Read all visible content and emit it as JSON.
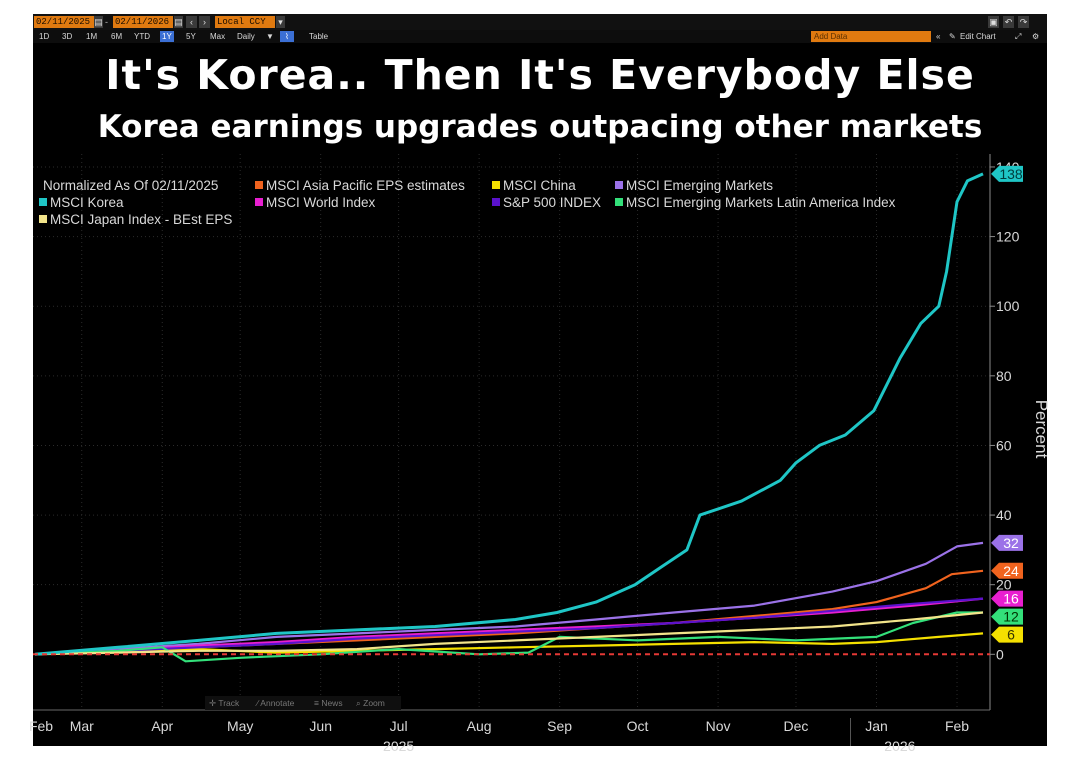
{
  "toolbar": {
    "start_date": "02/11/2025",
    "end_date": "02/11/2026",
    "currency": "Local CCY",
    "ranges": [
      "1D",
      "3D",
      "1M",
      "6M",
      "YTD",
      "1Y",
      "5Y",
      "Max"
    ],
    "active_range": "1Y",
    "frequency": "Daily",
    "table_label": "Table",
    "add_data_placeholder": "Add Data",
    "edit_chart_label": "Edit Chart"
  },
  "headline": "It's Korea.. Then It's Everybody Else",
  "subheadline": "Korea earnings upgrades outpacing other markets",
  "chart_toolbar": [
    "Track",
    "Annotate",
    "News",
    "Zoom"
  ],
  "colors": {
    "background": "#000000",
    "grid": "#2d2d2d",
    "zero_line": "#e53935",
    "text": "#d9d9d9"
  },
  "chart_data": {
    "type": "line",
    "legend_header": "Normalized As Of 02/11/2025",
    "ylabel": "Percent",
    "ylim": [
      -16,
      142
    ],
    "y_ticks": [
      0,
      20,
      40,
      60,
      80,
      100,
      120,
      140
    ],
    "x_start": "2025-02-11",
    "x_end": "2026-02-11",
    "month_ticks": [
      {
        "label": "Feb",
        "date": "2025-02-11"
      },
      {
        "label": "Mar",
        "date": "2025-03-01"
      },
      {
        "label": "Apr",
        "date": "2025-04-01"
      },
      {
        "label": "May",
        "date": "2025-05-01"
      },
      {
        "label": "Jun",
        "date": "2025-06-01"
      },
      {
        "label": "Jul",
        "date": "2025-07-01"
      },
      {
        "label": "Aug",
        "date": "2025-08-01"
      },
      {
        "label": "Sep",
        "date": "2025-09-01"
      },
      {
        "label": "Oct",
        "date": "2025-10-01"
      },
      {
        "label": "Nov",
        "date": "2025-11-01"
      },
      {
        "label": "Dec",
        "date": "2025-12-01"
      },
      {
        "label": "Jan",
        "date": "2026-01-01"
      },
      {
        "label": "Feb",
        "date": "2026-02-01"
      }
    ],
    "year_labels": [
      {
        "label": "2025",
        "date": "2025-07-01"
      },
      {
        "label": "2026",
        "date": "2026-01-10"
      }
    ],
    "year_divider_date": "2026-01-01",
    "series": [
      {
        "name": "MSCI Asia Pacific EPS estimates",
        "color": "#f0631e",
        "last_value": 24,
        "points": [
          [
            "2025-02-11",
            0
          ],
          [
            "2025-03-15",
            1
          ],
          [
            "2025-04-15",
            2
          ],
          [
            "2025-05-15",
            3
          ],
          [
            "2025-06-15",
            4
          ],
          [
            "2025-07-15",
            5
          ],
          [
            "2025-08-15",
            6
          ],
          [
            "2025-09-15",
            7.5
          ],
          [
            "2025-10-15",
            9
          ],
          [
            "2025-11-15",
            11
          ],
          [
            "2025-12-15",
            13
          ],
          [
            "2026-01-01",
            15
          ],
          [
            "2026-01-20",
            19
          ],
          [
            "2026-01-30",
            23
          ],
          [
            "2026-02-11",
            24
          ]
        ]
      },
      {
        "name": "MSCI China",
        "color": "#f5e000",
        "last_value": 6,
        "points": [
          [
            "2025-02-11",
            0
          ],
          [
            "2025-03-15",
            0.8
          ],
          [
            "2025-04-15",
            1.5
          ],
          [
            "2025-05-15",
            0.5
          ],
          [
            "2025-06-15",
            1
          ],
          [
            "2025-07-15",
            1.5
          ],
          [
            "2025-08-15",
            2
          ],
          [
            "2025-09-15",
            2.5
          ],
          [
            "2025-10-15",
            3
          ],
          [
            "2025-11-15",
            3.5
          ],
          [
            "2025-12-15",
            3
          ],
          [
            "2026-01-01",
            3.5
          ],
          [
            "2026-01-25",
            5
          ],
          [
            "2026-02-11",
            6
          ]
        ]
      },
      {
        "name": "MSCI Emerging Markets",
        "color": "#9b72e8",
        "last_value": 32,
        "points": [
          [
            "2025-02-11",
            0
          ],
          [
            "2025-03-15",
            1.5
          ],
          [
            "2025-04-15",
            3
          ],
          [
            "2025-05-15",
            5
          ],
          [
            "2025-06-15",
            6
          ],
          [
            "2025-07-15",
            7
          ],
          [
            "2025-08-15",
            8
          ],
          [
            "2025-09-15",
            10
          ],
          [
            "2025-10-15",
            12
          ],
          [
            "2025-11-15",
            14
          ],
          [
            "2025-12-15",
            18
          ],
          [
            "2026-01-01",
            21
          ],
          [
            "2026-01-20",
            26
          ],
          [
            "2026-02-01",
            31
          ],
          [
            "2026-02-11",
            32
          ]
        ]
      },
      {
        "name": "MSCI Korea",
        "color": "#1fc6c6",
        "last_value": 138,
        "points": [
          [
            "2025-02-11",
            0
          ],
          [
            "2025-03-15",
            2
          ],
          [
            "2025-04-15",
            4
          ],
          [
            "2025-05-15",
            6
          ],
          [
            "2025-06-15",
            7
          ],
          [
            "2025-07-15",
            8
          ],
          [
            "2025-08-15",
            10
          ],
          [
            "2025-08-31",
            12
          ],
          [
            "2025-09-15",
            15
          ],
          [
            "2025-09-30",
            20
          ],
          [
            "2025-10-10",
            25
          ],
          [
            "2025-10-20",
            30
          ],
          [
            "2025-10-25",
            40
          ],
          [
            "2025-11-10",
            44
          ],
          [
            "2025-11-25",
            50
          ],
          [
            "2025-12-01",
            55
          ],
          [
            "2025-12-10",
            60
          ],
          [
            "2025-12-20",
            63
          ],
          [
            "2025-12-31",
            70
          ],
          [
            "2026-01-10",
            85
          ],
          [
            "2026-01-18",
            95
          ],
          [
            "2026-01-25",
            100
          ],
          [
            "2026-01-28",
            110
          ],
          [
            "2026-02-01",
            130
          ],
          [
            "2026-02-05",
            136
          ],
          [
            "2026-02-11",
            138
          ]
        ]
      },
      {
        "name": "MSCI World Index",
        "color": "#e81fd0",
        "last_value": 16,
        "points": [
          [
            "2025-02-11",
            0
          ],
          [
            "2025-03-15",
            1
          ],
          [
            "2025-04-15",
            2.5
          ],
          [
            "2025-05-15",
            3.5
          ],
          [
            "2025-06-15",
            5
          ],
          [
            "2025-07-15",
            6
          ],
          [
            "2025-08-15",
            7
          ],
          [
            "2025-09-15",
            8
          ],
          [
            "2025-10-15",
            9
          ],
          [
            "2025-11-15",
            10.5
          ],
          [
            "2025-12-15",
            12
          ],
          [
            "2026-01-15",
            14
          ],
          [
            "2026-02-11",
            16
          ]
        ]
      },
      {
        "name": "S&P 500 INDEX",
        "color": "#5a12cc",
        "last_value": 16,
        "points": [
          [
            "2025-02-11",
            0
          ],
          [
            "2025-03-15",
            1
          ],
          [
            "2025-04-15",
            2
          ],
          [
            "2025-05-15",
            3
          ],
          [
            "2025-06-15",
            4.5
          ],
          [
            "2025-07-15",
            5.5
          ],
          [
            "2025-08-15",
            6.5
          ],
          [
            "2025-09-15",
            7.5
          ],
          [
            "2025-10-15",
            9
          ],
          [
            "2025-11-15",
            10.5
          ],
          [
            "2025-12-15",
            12.5
          ],
          [
            "2026-01-15",
            14.5
          ],
          [
            "2026-02-11",
            16
          ]
        ]
      },
      {
        "name": "MSCI Emerging Markets Latin America Index",
        "color": "#33e07a",
        "last_value": 12,
        "points": [
          [
            "2025-02-11",
            0
          ],
          [
            "2025-03-15",
            1
          ],
          [
            "2025-04-01",
            2
          ],
          [
            "2025-04-10",
            -2
          ],
          [
            "2025-05-01",
            -1
          ],
          [
            "2025-06-01",
            0
          ],
          [
            "2025-07-01",
            1.5
          ],
          [
            "2025-08-01",
            0
          ],
          [
            "2025-08-20",
            0.5
          ],
          [
            "2025-09-01",
            5
          ],
          [
            "2025-10-01",
            4
          ],
          [
            "2025-11-01",
            5
          ],
          [
            "2025-12-01",
            4
          ],
          [
            "2026-01-01",
            5
          ],
          [
            "2026-01-15",
            9
          ],
          [
            "2026-02-01",
            12
          ],
          [
            "2026-02-11",
            12
          ]
        ]
      },
      {
        "name": "MSCI Japan Index - BEst EPS",
        "color": "#f2e48a",
        "last_value": 12,
        "points": [
          [
            "2025-02-11",
            0
          ],
          [
            "2025-03-15",
            0.5
          ],
          [
            "2025-04-15",
            1
          ],
          [
            "2025-05-15",
            1
          ],
          [
            "2025-06-15",
            1.5
          ],
          [
            "2025-07-15",
            3
          ],
          [
            "2025-08-15",
            4
          ],
          [
            "2025-09-15",
            5
          ],
          [
            "2025-10-15",
            6
          ],
          [
            "2025-11-15",
            7
          ],
          [
            "2025-12-15",
            8
          ],
          [
            "2026-01-15",
            10
          ],
          [
            "2026-02-11",
            12
          ]
        ]
      }
    ],
    "value_labels": [
      {
        "text": "138",
        "value": 138,
        "color": "#1fc6c6",
        "text_color": "#003c3c"
      },
      {
        "text": "32",
        "value": 32,
        "color": "#9b72e8",
        "text_color": "#ffffff"
      },
      {
        "text": "24",
        "value": 24,
        "color": "#f0631e",
        "text_color": "#ffffff"
      },
      {
        "text": "16",
        "value": 16,
        "color": "#e81fd0",
        "text_color": "#ffffff"
      },
      {
        "text": "12",
        "value": 12,
        "color": "#33e07a",
        "text_color": "#003300"
      },
      {
        "text": "6",
        "value": 6,
        "color": "#f5e000",
        "text_color": "#333300"
      }
    ]
  }
}
